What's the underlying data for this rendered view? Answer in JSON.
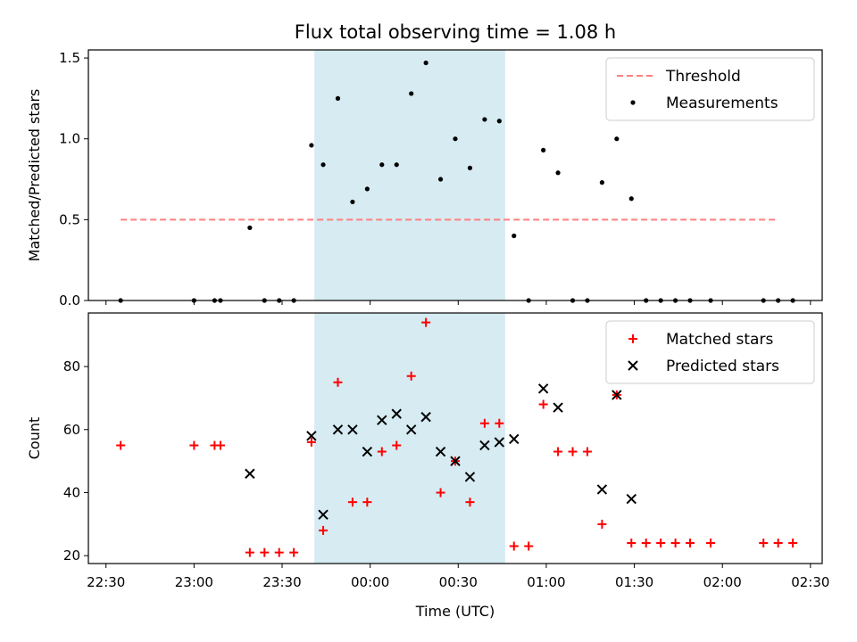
{
  "chart_data": {
    "type": "scatter",
    "title": "Flux total observing time = 1.08 h",
    "xlabel": "Time (UTC)",
    "x_ticks": [
      "22:30",
      "23:00",
      "23:30",
      "00:00",
      "00:30",
      "01:00",
      "01:30",
      "02:00",
      "02:30"
    ],
    "xlim": [
      "22:24",
      "02:34"
    ],
    "highlight_span": [
      "23:41",
      "00:46"
    ],
    "highlight_color": "#add8e6",
    "panels": [
      {
        "ylabel": "Matched/Predicted stars",
        "ylim": [
          0,
          1.55
        ],
        "y_ticks": [
          "0.0",
          "0.5",
          "1.0",
          "1.5"
        ],
        "legend_position": "top-right",
        "threshold": {
          "name": "Threshold",
          "value": 0.5,
          "x_range": [
            "22:35",
            "02:19"
          ],
          "color": "#ff7f7f",
          "style": "dashed"
        },
        "series": [
          {
            "name": "Measurements",
            "kind": "dot",
            "color": "#000000",
            "points": [
              [
                "22:35",
                0
              ],
              [
                "23:00",
                0
              ],
              [
                "23:07",
                0
              ],
              [
                "23:09",
                0
              ],
              [
                "23:19",
                0.45
              ],
              [
                "23:24",
                0
              ],
              [
                "23:29",
                0
              ],
              [
                "23:34",
                0
              ],
              [
                "23:40",
                0.96
              ],
              [
                "23:44",
                0.84
              ],
              [
                "23:49",
                1.25
              ],
              [
                "23:54",
                0.61
              ],
              [
                "23:59",
                0.69
              ],
              [
                "00:04",
                0.84
              ],
              [
                "00:09",
                0.84
              ],
              [
                "00:14",
                1.28
              ],
              [
                "00:19",
                1.47
              ],
              [
                "00:24",
                0.75
              ],
              [
                "00:29",
                1.0
              ],
              [
                "00:34",
                0.82
              ],
              [
                "00:39",
                1.12
              ],
              [
                "00:44",
                1.11
              ],
              [
                "00:49",
                0.4
              ],
              [
                "00:54",
                0
              ],
              [
                "00:59",
                0.93
              ],
              [
                "01:04",
                0.79
              ],
              [
                "01:09",
                0
              ],
              [
                "01:14",
                0
              ],
              [
                "01:19",
                0.73
              ],
              [
                "01:24",
                1.0
              ],
              [
                "01:29",
                0.63
              ],
              [
                "01:34",
                0
              ],
              [
                "01:39",
                0
              ],
              [
                "01:44",
                0
              ],
              [
                "01:49",
                0
              ],
              [
                "01:56",
                0
              ],
              [
                "02:14",
                0
              ],
              [
                "02:19",
                0
              ],
              [
                "02:24",
                0
              ]
            ]
          }
        ]
      },
      {
        "ylabel": "Count",
        "ylim": [
          17.5,
          97
        ],
        "y_ticks": [
          "20",
          "40",
          "60",
          "80"
        ],
        "legend_position": "top-right",
        "series": [
          {
            "name": "Matched stars",
            "kind": "plus",
            "color": "#ff0000",
            "points": [
              [
                "22:35",
                55
              ],
              [
                "23:00",
                55
              ],
              [
                "23:07",
                55
              ],
              [
                "23:09",
                55
              ],
              [
                "23:19",
                21
              ],
              [
                "23:24",
                21
              ],
              [
                "23:29",
                21
              ],
              [
                "23:34",
                21
              ],
              [
                "23:40",
                56
              ],
              [
                "23:44",
                28
              ],
              [
                "23:49",
                75
              ],
              [
                "23:54",
                37
              ],
              [
                "23:59",
                37
              ],
              [
                "00:04",
                53
              ],
              [
                "00:09",
                55
              ],
              [
                "00:14",
                77
              ],
              [
                "00:19",
                94
              ],
              [
                "00:24",
                40
              ],
              [
                "00:29",
                50
              ],
              [
                "00:34",
                37
              ],
              [
                "00:39",
                62
              ],
              [
                "00:44",
                62
              ],
              [
                "00:49",
                23
              ],
              [
                "00:54",
                23
              ],
              [
                "00:59",
                68
              ],
              [
                "01:04",
                53
              ],
              [
                "01:09",
                53
              ],
              [
                "01:14",
                53
              ],
              [
                "01:19",
                30
              ],
              [
                "01:24",
                71
              ],
              [
                "01:29",
                24
              ],
              [
                "01:34",
                24
              ],
              [
                "01:39",
                24
              ],
              [
                "01:44",
                24
              ],
              [
                "01:49",
                24
              ],
              [
                "01:56",
                24
              ],
              [
                "02:14",
                24
              ],
              [
                "02:19",
                24
              ],
              [
                "02:24",
                24
              ]
            ]
          },
          {
            "name": "Predicted stars",
            "kind": "x",
            "color": "#000000",
            "points": [
              [
                "23:19",
                46
              ],
              [
                "23:40",
                58
              ],
              [
                "23:44",
                33
              ],
              [
                "23:49",
                60
              ],
              [
                "23:54",
                60
              ],
              [
                "23:59",
                53
              ],
              [
                "00:04",
                63
              ],
              [
                "00:09",
                65
              ],
              [
                "00:14",
                60
              ],
              [
                "00:19",
                64
              ],
              [
                "00:24",
                53
              ],
              [
                "00:29",
                50
              ],
              [
                "00:34",
                45
              ],
              [
                "00:39",
                55
              ],
              [
                "00:44",
                56
              ],
              [
                "00:49",
                57
              ],
              [
                "00:59",
                73
              ],
              [
                "01:04",
                67
              ],
              [
                "01:19",
                41
              ],
              [
                "01:24",
                71
              ],
              [
                "01:29",
                38
              ]
            ]
          }
        ]
      }
    ]
  }
}
